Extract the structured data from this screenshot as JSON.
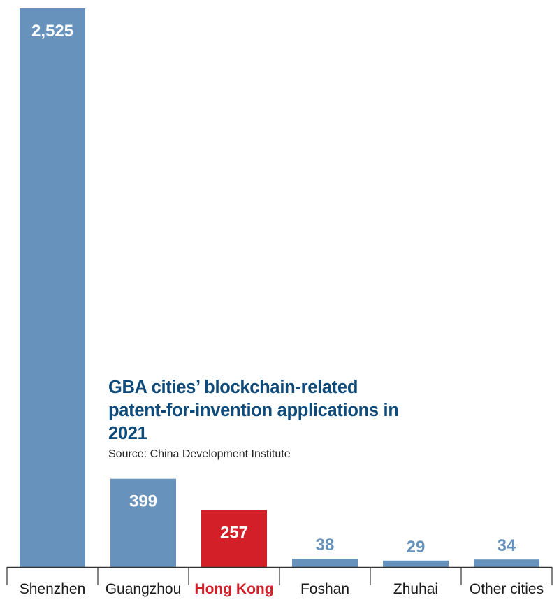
{
  "chart_data": {
    "type": "bar",
    "title": "GBA cities’ blockchain-related patent-for-invention applications in 2021",
    "source": "Source: China Development Institute",
    "categories": [
      "Shenzhen",
      "Guangzhou",
      "Hong Kong",
      "Foshan",
      "Zhuhai",
      "Other cities"
    ],
    "values": [
      2525,
      399,
      257,
      38,
      29,
      34
    ],
    "value_labels": [
      "2,525",
      "399",
      "257",
      "38",
      "29",
      "34"
    ],
    "highlight_category": "Hong Kong",
    "colors": {
      "bar": "#6792bb",
      "highlight": "#d31f27",
      "title": "#0e4a7a",
      "axis": "#333333"
    },
    "ylim": [
      0,
      2525
    ],
    "grid": false,
    "xlabel": "",
    "ylabel": ""
  }
}
